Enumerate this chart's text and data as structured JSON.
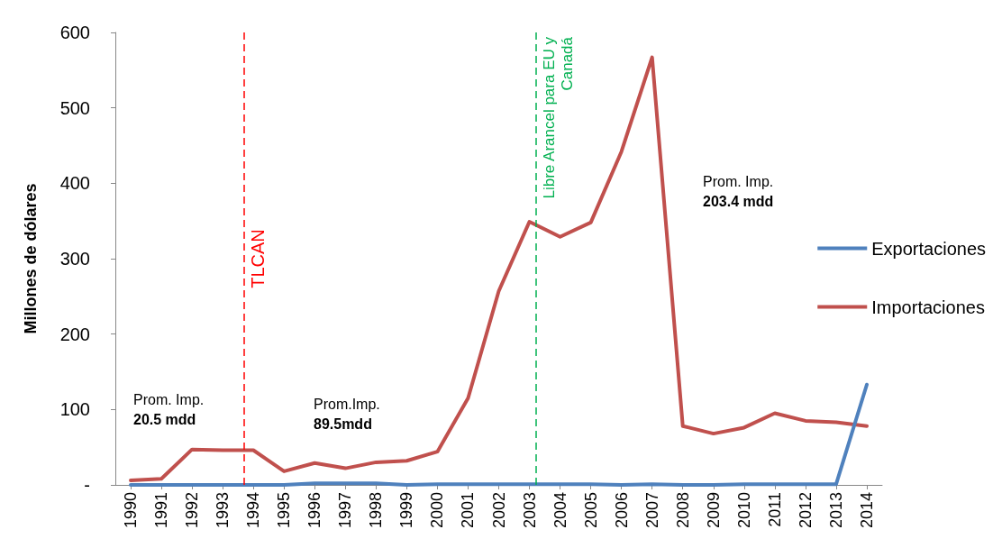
{
  "chart_data": {
    "type": "line",
    "ylabel": "Millones de dólares",
    "x": [
      1990,
      1991,
      1992,
      1993,
      1994,
      1995,
      1996,
      1997,
      1998,
      1999,
      2000,
      2001,
      2002,
      2003,
      2004,
      2005,
      2006,
      2007,
      2008,
      2009,
      2010,
      2011,
      2012,
      2013,
      2014
    ],
    "series": [
      {
        "name": "Exportaciones",
        "color": "#4f81bd",
        "values": [
          0,
          0,
          0,
          0,
          0,
          0,
          2,
          2,
          2,
          0,
          1,
          1,
          1,
          1,
          1,
          1,
          0,
          1,
          0,
          0,
          1,
          1,
          1,
          1,
          133
        ]
      },
      {
        "name": "Importaciones",
        "color": "#c0504d",
        "values": [
          6,
          8,
          47,
          46,
          46,
          18,
          29,
          22,
          30,
          32,
          44,
          115,
          257,
          349,
          329,
          348,
          442,
          567,
          78,
          68,
          76,
          95,
          85,
          83,
          78
        ]
      }
    ],
    "xlim": [
      1989.5,
      2014.5
    ],
    "xticks": [
      1990,
      1991,
      1992,
      1993,
      1994,
      1995,
      1996,
      1997,
      1998,
      1999,
      2000,
      2001,
      2002,
      2003,
      2004,
      2005,
      2006,
      2007,
      2008,
      2009,
      2010,
      2011,
      2012,
      2013,
      2014
    ],
    "ylim": [
      0,
      600
    ],
    "yticks": [
      {
        "value": 0,
        "label": "-"
      },
      100,
      200,
      300,
      400,
      500,
      600
    ],
    "grid": false,
    "legend": "right",
    "marker": "none",
    "line_style": "solid",
    "ref_lines": [
      {
        "axis": "x",
        "value": 1993.7,
        "label": "TLCAN",
        "color": "#ff0000",
        "line_style": "dashed"
      },
      {
        "axis": "x",
        "value": 2003.2,
        "label": "Libre Arancel para EU y Canadá",
        "color": "#00b050",
        "line_style": "dashed"
      }
    ],
    "annotations": [
      "Prom. Imp.\n20.5 mdd",
      "Prom.Imp.\n89.5mdd",
      "Prom. Imp.\n203.4 mdd"
    ]
  }
}
